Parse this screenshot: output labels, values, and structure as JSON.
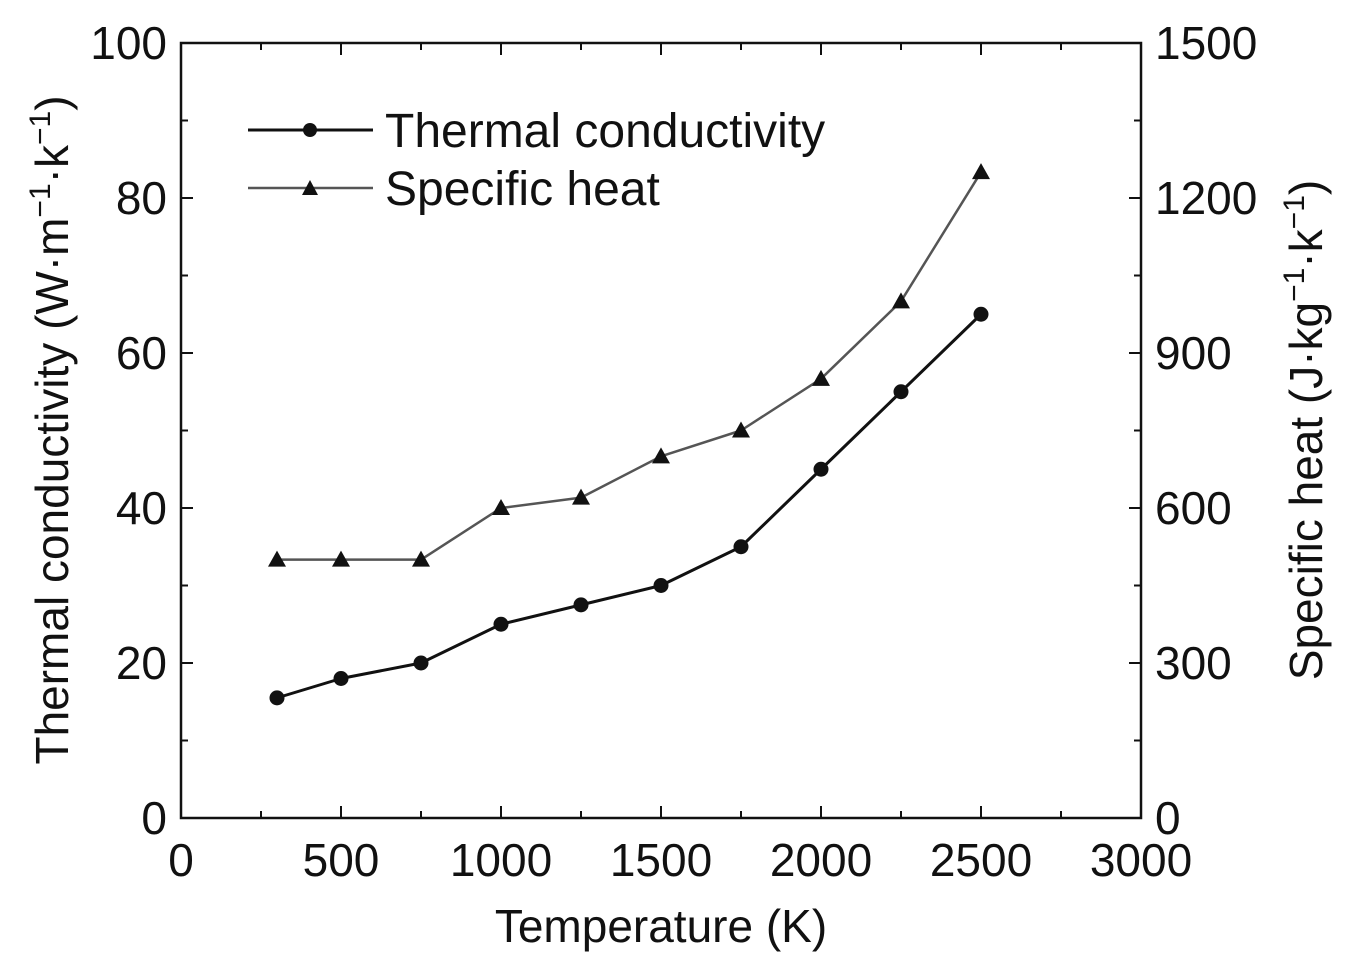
{
  "chart_data": {
    "type": "line",
    "xlabel": "Temperature (K)",
    "ylabel_left": {
      "main": "Thermal conductivity (W·m",
      "sup1": "−1",
      "mid": "·k",
      "sup2": "−1",
      "end": ")"
    },
    "ylabel_right": {
      "main": "Specific heat (J·kg",
      "sup1": "−1",
      "mid": "·k",
      "sup2": "−1",
      "end": ")"
    },
    "xlim": [
      0,
      3000
    ],
    "ylim_left": [
      0,
      100
    ],
    "ylim_right": [
      0,
      1500
    ],
    "x_ticks": [
      "0",
      "500",
      "1000",
      "1500",
      "2000",
      "2500",
      "3000"
    ],
    "y_left_ticks": [
      "0",
      "20",
      "40",
      "60",
      "80",
      "100"
    ],
    "y_right_ticks": [
      "0",
      "300",
      "600",
      "900",
      "1200",
      "1500"
    ],
    "x": [
      300,
      500,
      750,
      1000,
      1250,
      1500,
      1750,
      2000,
      2250,
      2500
    ],
    "series": [
      {
        "name": "Thermal conductivity",
        "axis": "left",
        "marker": "circle",
        "color": "#111111",
        "values": [
          15.5,
          18,
          20,
          25,
          27.5,
          30,
          35,
          45,
          55,
          65
        ]
      },
      {
        "name": "Specific heat",
        "axis": "right",
        "marker": "triangle",
        "color": "#555555",
        "values": [
          500,
          500,
          500,
          600,
          620,
          700,
          750,
          850,
          1000,
          1250
        ]
      }
    ],
    "legend_position": "top-left",
    "grid": false
  }
}
